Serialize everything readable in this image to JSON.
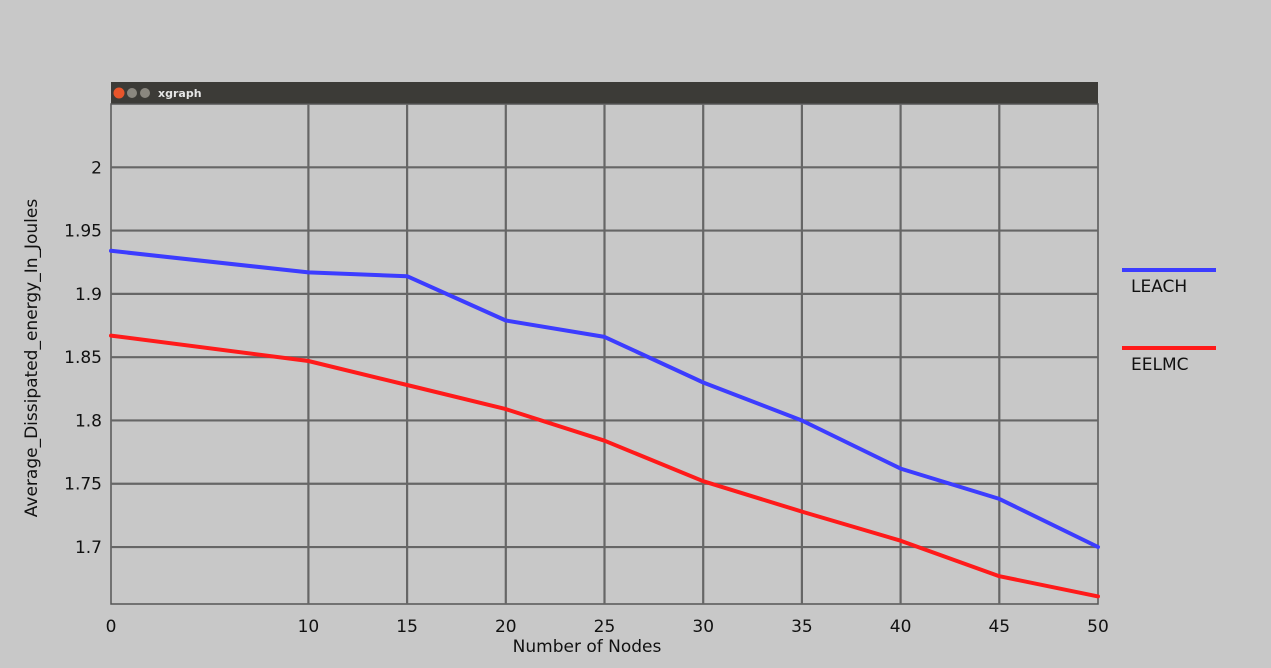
{
  "window": {
    "title": "xgraph"
  },
  "colors": {
    "background": "#c8c8c8",
    "plot_background": "#c8c8c8",
    "grid": "#666666",
    "titlebar": "#3c3b37",
    "close_button": "#e8552b",
    "other_buttons": "#8a877f"
  },
  "chart_data": {
    "type": "line",
    "title": "",
    "xlabel": "Number of Nodes",
    "ylabel": "Average_Dissipated_energy_In_Joules",
    "xlim": [
      0,
      50
    ],
    "ylim": [
      1.655,
      2.05
    ],
    "x_ticks": [
      0,
      10,
      15,
      20,
      25,
      30,
      35,
      40,
      45,
      50
    ],
    "x_tick_labels": [
      "0",
      "10",
      "15",
      "20",
      "25",
      "30",
      "35",
      "40",
      "45",
      "50"
    ],
    "y_ticks": [
      1.7,
      1.75,
      1.8,
      1.85,
      1.9,
      1.95,
      2.0
    ],
    "y_tick_labels": [
      "1.7",
      "1.75",
      "1.8",
      "1.85",
      "1.9",
      "1.95",
      "2"
    ],
    "grid": true,
    "legend_position": "right",
    "series": [
      {
        "name": "LEACH",
        "color": "#3c3cff",
        "x": [
          0,
          10,
          15,
          20,
          25,
          30,
          35,
          40,
          45,
          50
        ],
        "y": [
          1.934,
          1.917,
          1.914,
          1.879,
          1.866,
          1.83,
          1.8,
          1.762,
          1.738,
          1.7
        ]
      },
      {
        "name": "EELMC",
        "color": "#ff1a1a",
        "x": [
          0,
          10,
          15,
          20,
          25,
          30,
          35,
          40,
          45,
          50
        ],
        "y": [
          1.867,
          1.847,
          1.828,
          1.809,
          1.784,
          1.752,
          1.728,
          1.705,
          1.677,
          1.661
        ]
      }
    ]
  }
}
